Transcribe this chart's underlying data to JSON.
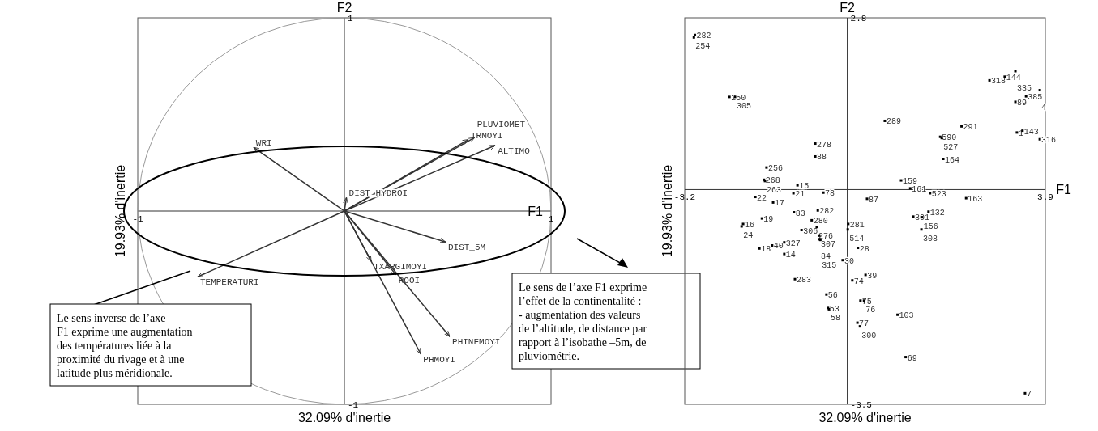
{
  "chart_data": [
    {
      "type": "line",
      "title": "F2",
      "xlabel": "32.09% d'inertie",
      "ylabel": "19.93% d'inertie",
      "xlim": [
        -1,
        1
      ],
      "ylim": [
        -1,
        1
      ],
      "xticks": [
        -1,
        1
      ],
      "yticks": [
        -1,
        1
      ],
      "marker": "none",
      "line_style": "solid",
      "annotations": [
        "F1",
        "Le sens inverse de l’axe\nF1 exprime une augmentation\ndes températures liée à la\nproximité du rivage et à une\nlatitude plus méridionale.",
        "Le sens de l’axe F1 exprime\nl’effet de la continentalité :\n- augmentation des valeurs\nde l’altitude, de distance par\nrapport à l’isobathe –5m, de\npluviométrie."
      ],
      "series": [
        {
          "name": "TRMOYI",
          "color": "#333333",
          "x": [
            0,
            0.6
          ],
          "values": [
            0,
            0.37
          ]
        },
        {
          "name": "PLUVIOMET",
          "color": "#333333",
          "x": [
            0,
            0.63
          ],
          "values": [
            0,
            0.38
          ]
        },
        {
          "name": "ALTIMO",
          "color": "#333333",
          "x": [
            0,
            0.73
          ],
          "values": [
            0,
            0.34
          ]
        },
        {
          "name": "WRI",
          "color": "#333333",
          "x": [
            0,
            -0.44
          ],
          "values": [
            0,
            0.33
          ]
        },
        {
          "name": "DIST_HYDROI",
          "color": "#333333",
          "x": [
            0,
            0.01
          ],
          "values": [
            0,
            0.07
          ]
        },
        {
          "name": "DIST_5M",
          "color": "#333333",
          "x": [
            0,
            0.49
          ],
          "values": [
            0,
            -0.16
          ]
        },
        {
          "name": "TEMPERATURI",
          "color": "#333333",
          "x": [
            0,
            -0.71
          ],
          "values": [
            0,
            -0.34
          ]
        },
        {
          "name": "TXARGIMOYI",
          "color": "#333333",
          "x": [
            0,
            0.13
          ],
          "values": [
            0,
            -0.26
          ]
        },
        {
          "name": "ROOI",
          "color": "#333333",
          "x": [
            0,
            0.25
          ],
          "values": [
            0,
            -0.33
          ]
        },
        {
          "name": "PHINFMOYI",
          "color": "#333333",
          "x": [
            0,
            0.51
          ],
          "values": [
            0,
            -0.65
          ]
        },
        {
          "name": "PHMOYI",
          "color": "#333333",
          "x": [
            0,
            0.37
          ],
          "values": [
            0,
            -0.74
          ]
        }
      ]
    },
    {
      "type": "scatter",
      "title": "F2",
      "xlabel": "32.09% d'inertie",
      "ylabel": "19.93% d'inertie",
      "xlim": [
        -3.2,
        3.9
      ],
      "ylim": [
        -3.5,
        2.8
      ],
      "xticks": [
        -3.2,
        3.9
      ],
      "yticks": [
        -3.5,
        2.8
      ],
      "marker": "square",
      "annotations": [
        "F1",
        {
          "text": "282",
          "x": -3.0,
          "y": 2.52
        },
        {
          "text": "254",
          "x": -3.02,
          "y": 2.48
        },
        {
          "text": "250",
          "x": -2.32,
          "y": 1.51
        },
        {
          "text": "305",
          "x": -2.21,
          "y": 1.51
        },
        {
          "text": "278",
          "x": -0.63,
          "y": 0.75
        },
        {
          "text": "88",
          "x": -0.63,
          "y": 0.54
        },
        {
          "text": "256",
          "x": -1.59,
          "y": 0.36
        },
        {
          "text": "268",
          "x": -1.64,
          "y": 0.16
        },
        {
          "text": "263",
          "x": -1.62,
          "y": 0.14
        },
        {
          "text": "15",
          "x": -0.98,
          "y": 0.07
        },
        {
          "text": "22",
          "x": -1.81,
          "y": -0.12
        },
        {
          "text": "17",
          "x": -1.46,
          "y": -0.21
        },
        {
          "text": "21",
          "x": -1.06,
          "y": -0.06
        },
        {
          "text": "78",
          "x": -0.47,
          "y": -0.05
        },
        {
          "text": "16",
          "x": -2.05,
          "y": -0.56
        },
        {
          "text": "24",
          "x": -2.08,
          "y": -0.6
        },
        {
          "text": "19",
          "x": -1.68,
          "y": -0.47
        },
        {
          "text": "83",
          "x": -1.05,
          "y": -0.37
        },
        {
          "text": "282",
          "x": -0.58,
          "y": -0.34
        },
        {
          "text": "280",
          "x": -0.7,
          "y": -0.5
        },
        {
          "text": "281",
          "x": 0.02,
          "y": -0.56
        },
        {
          "text": "276",
          "x": -0.6,
          "y": -0.61
        },
        {
          "text": "514",
          "x": 0.01,
          "y": -0.65
        },
        {
          "text": "306",
          "x": -0.9,
          "y": -0.66
        },
        {
          "text": "307",
          "x": -0.55,
          "y": -0.75
        },
        {
          "text": "84",
          "x": -0.55,
          "y": -0.81
        },
        {
          "text": "315",
          "x": -0.53,
          "y": -0.82
        },
        {
          "text": "18",
          "x": -1.73,
          "y": -0.96
        },
        {
          "text": "40",
          "x": -1.48,
          "y": -0.91
        },
        {
          "text": "327",
          "x": -1.24,
          "y": -0.86
        },
        {
          "text": "14",
          "x": -1.24,
          "y": -1.05
        },
        {
          "text": "283",
          "x": -1.03,
          "y": -1.46
        },
        {
          "text": "56",
          "x": -0.41,
          "y": -1.71
        },
        {
          "text": "53",
          "x": -0.38,
          "y": -1.93
        },
        {
          "text": "58",
          "x": -0.36,
          "y": -1.95
        },
        {
          "text": "30",
          "x": -0.09,
          "y": -1.15
        },
        {
          "text": "28",
          "x": 0.21,
          "y": -0.95
        },
        {
          "text": "39",
          "x": 0.36,
          "y": -1.39
        },
        {
          "text": "74",
          "x": 0.1,
          "y": -1.48
        },
        {
          "text": "75",
          "x": 0.26,
          "y": -1.81
        },
        {
          "text": "76",
          "x": 0.33,
          "y": -1.81
        },
        {
          "text": "77",
          "x": 0.2,
          "y": -2.17
        },
        {
          "text": "300",
          "x": 0.25,
          "y": -2.23
        },
        {
          "text": "103",
          "x": 0.99,
          "y": -2.04
        },
        {
          "text": "69",
          "x": 1.15,
          "y": -2.73
        },
        {
          "text": "7",
          "x": 3.5,
          "y": -3.32
        },
        {
          "text": "87",
          "x": 0.39,
          "y": -0.15
        },
        {
          "text": "159",
          "x": 1.06,
          "y": 0.15
        },
        {
          "text": "161",
          "x": 1.24,
          "y": 0.02
        },
        {
          "text": "523",
          "x": 1.63,
          "y": -0.06
        },
        {
          "text": "163",
          "x": 2.34,
          "y": -0.14
        },
        {
          "text": "132",
          "x": 1.6,
          "y": -0.36
        },
        {
          "text": "301",
          "x": 1.3,
          "y": -0.44
        },
        {
          "text": "156",
          "x": 1.47,
          "y": -0.45
        },
        {
          "text": "308",
          "x": 1.46,
          "y": -0.65
        },
        {
          "text": "164",
          "x": 1.89,
          "y": 0.5
        },
        {
          "text": "289",
          "x": 0.74,
          "y": 1.12
        },
        {
          "text": "291",
          "x": 2.25,
          "y": 1.03
        },
        {
          "text": "590",
          "x": 1.83,
          "y": 0.86
        },
        {
          "text": "527",
          "x": 1.86,
          "y": 0.84
        },
        {
          "text": "1",
          "x": 3.34,
          "y": 0.93
        },
        {
          "text": "143",
          "x": 3.45,
          "y": 0.96
        },
        {
          "text": "316",
          "x": 3.79,
          "y": 0.82
        },
        {
          "text": "89",
          "x": 3.31,
          "y": 1.43
        },
        {
          "text": "385",
          "x": 3.52,
          "y": 1.52
        },
        {
          "text": "4",
          "x": 3.79,
          "y": 1.62
        },
        {
          "text": "318",
          "x": 2.8,
          "y": 1.78
        },
        {
          "text": "144",
          "x": 3.1,
          "y": 1.84
        },
        {
          "text": "335",
          "x": 3.31,
          "y": 1.93
        }
      ],
      "series": [
        {
          "color": "#000000",
          "x": [
            -3.0,
            -3.02,
            -2.32,
            -2.21,
            -0.63,
            -0.63,
            -1.59,
            -1.64,
            -1.62,
            -0.98,
            -1.81,
            -1.46,
            -1.06,
            -0.47,
            -2.05,
            -2.08,
            -1.68,
            -1.05,
            -0.58,
            -0.7,
            0.02,
            -0.6,
            0.01,
            -0.9,
            -0.55,
            -0.55,
            -0.53,
            -1.73,
            -1.48,
            -1.24,
            -1.24,
            -1.03,
            -0.41,
            -0.38,
            -0.36,
            -0.09,
            0.21,
            0.36,
            0.1,
            0.26,
            0.33,
            0.2,
            0.25,
            0.99,
            1.15,
            3.5,
            0.39,
            1.06,
            1.24,
            1.63,
            2.34,
            1.6,
            1.3,
            1.47,
            1.46,
            1.89,
            0.74,
            2.25,
            1.83,
            1.86,
            3.34,
            3.45,
            3.79,
            3.31,
            3.52,
            3.79,
            2.8,
            3.1,
            3.31
          ],
          "values": [
            2.52,
            2.48,
            1.51,
            1.51,
            0.75,
            0.54,
            0.36,
            0.16,
            0.14,
            0.07,
            -0.12,
            -0.21,
            -0.06,
            -0.05,
            -0.56,
            -0.6,
            -0.47,
            -0.37,
            -0.34,
            -0.5,
            -0.56,
            -0.61,
            -0.65,
            -0.66,
            -0.75,
            -0.81,
            -0.82,
            -0.96,
            -0.91,
            -0.86,
            -1.05,
            -1.46,
            -1.71,
            -1.93,
            -1.95,
            -1.15,
            -0.95,
            -1.39,
            -1.48,
            -1.81,
            -1.81,
            -2.17,
            -2.23,
            -2.04,
            -2.73,
            -3.32,
            -0.15,
            0.15,
            0.02,
            -0.06,
            -0.14,
            -0.36,
            -0.44,
            -0.45,
            -0.65,
            0.5,
            1.12,
            1.03,
            0.86,
            0.84,
            0.93,
            0.96,
            0.82,
            1.43,
            1.52,
            1.62,
            1.78,
            1.84,
            1.93
          ]
        }
      ]
    }
  ]
}
